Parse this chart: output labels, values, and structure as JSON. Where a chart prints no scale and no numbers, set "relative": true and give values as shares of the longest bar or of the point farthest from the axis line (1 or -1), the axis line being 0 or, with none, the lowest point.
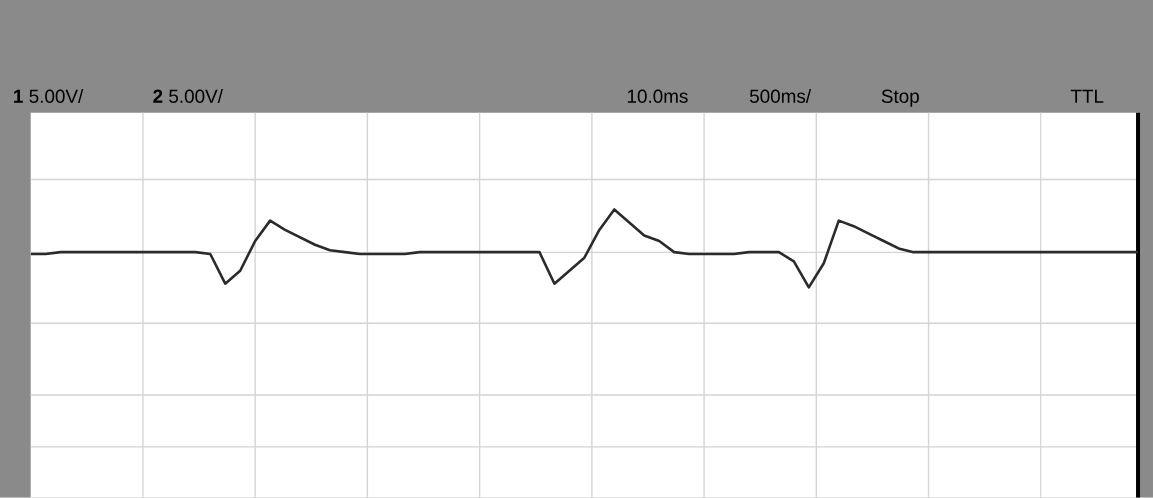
{
  "chart_data": {
    "type": "line",
    "relative": true,
    "grid": true,
    "color": "#2b2b2b",
    "annotations": [
      "**1** 5.00V/",
      "**2** 5.00V/",
      "10.0ms",
      "500ms/",
      "Stop",
      "TTL"
    ],
    "categories": [
      null,
      null,
      null,
      null,
      null,
      null,
      null,
      null,
      null,
      null,
      null,
      null,
      null,
      null,
      null,
      null,
      null,
      null,
      null,
      null,
      null,
      null,
      null,
      null,
      null,
      null,
      null,
      null,
      null,
      null,
      null,
      null,
      null,
      null,
      null,
      null,
      null,
      null,
      null,
      null,
      null,
      null,
      null,
      null,
      null,
      null,
      null,
      null,
      null,
      null,
      null,
      null,
      null,
      null,
      null,
      null,
      null,
      null,
      null,
      null,
      null,
      null,
      null,
      null,
      null,
      null,
      null,
      null,
      null,
      null,
      null,
      null,
      null,
      null,
      null
    ],
    "values": [
      0.76,
      0.76,
      0.77,
      0.77,
      0.77,
      0.77,
      0.77,
      0.77,
      0.77,
      0.77,
      0.77,
      0.77,
      0.76,
      0.6,
      0.67,
      0.83,
      0.94,
      0.89,
      0.85,
      0.81,
      0.78,
      0.77,
      0.76,
      0.76,
      0.76,
      0.76,
      0.77,
      0.77,
      0.77,
      0.77,
      0.77,
      0.77,
      0.77,
      0.77,
      0.77,
      0.6,
      0.67,
      0.74,
      0.89,
      1.0,
      0.93,
      0.86,
      0.83,
      0.77,
      0.76,
      0.76,
      0.76,
      0.76,
      0.77,
      0.77,
      0.77,
      0.72,
      0.58,
      0.71,
      0.94,
      0.91,
      0.87,
      0.83,
      0.79,
      0.77,
      0.77,
      0.77,
      0.77,
      0.77,
      0.77,
      0.77,
      0.77,
      0.77,
      0.77,
      0.77,
      0.77,
      0.77,
      0.77,
      0.77,
      0.77
    ]
  }
}
